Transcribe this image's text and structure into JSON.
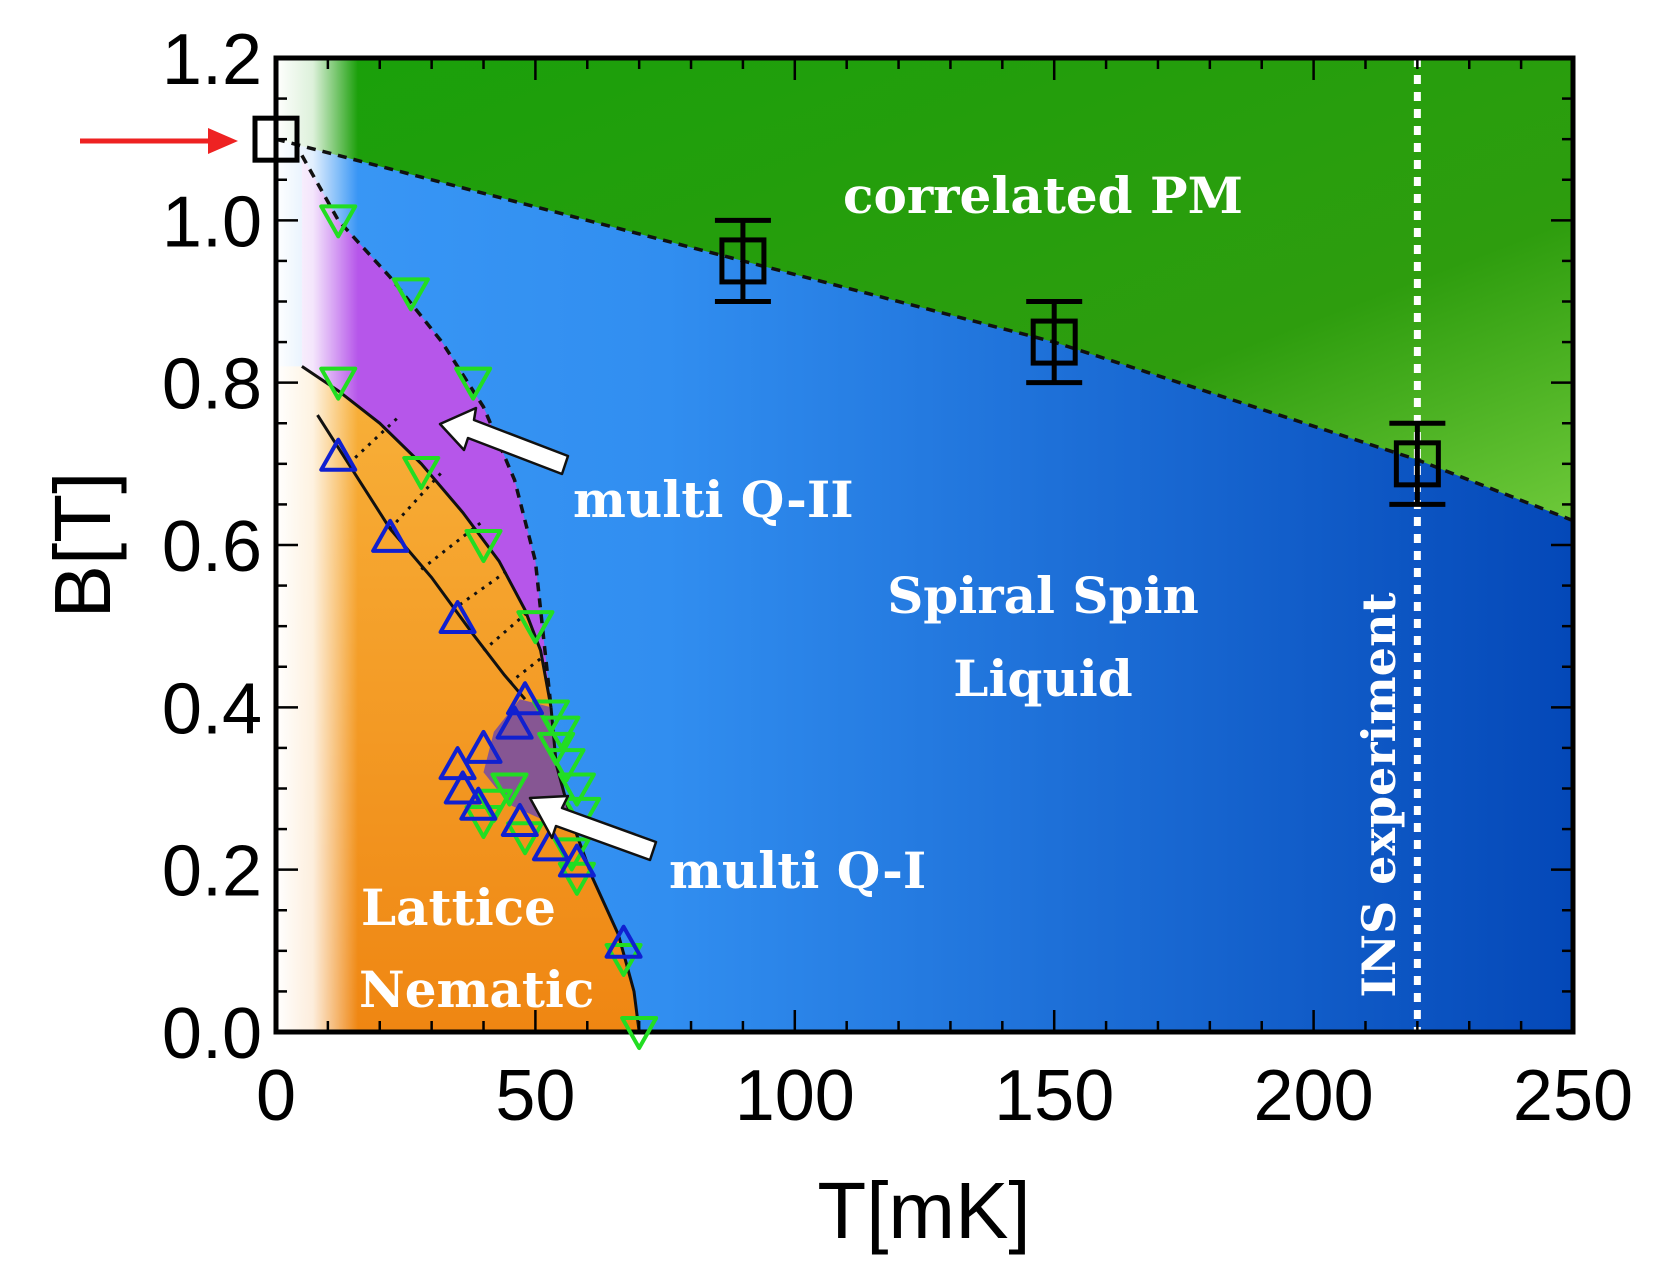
{
  "chart_data": {
    "type": "scatter",
    "title": "",
    "xlabel": "T[mK]",
    "ylabel": "B[T]",
    "xlim": [
      0,
      250
    ],
    "ylim": [
      0,
      1.2
    ],
    "xticks": [
      "0",
      "50",
      "100",
      "150",
      "200",
      "250"
    ],
    "yticks": [
      "0.0",
      "0.2",
      "0.4",
      "0.6",
      "0.8",
      "1.0",
      "1.2"
    ],
    "regions": [
      {
        "name": "correlated PM",
        "color": "#1e9a0a"
      },
      {
        "name": "Spiral Spin Liquid",
        "color": "#2b82e8"
      },
      {
        "name": "multi Q-II",
        "color": "#b656ea"
      },
      {
        "name": "multi Q-I",
        "color": "#7a4fa0"
      },
      {
        "name": "Lattice Nematic",
        "color": "#f29a1c"
      }
    ],
    "labels": {
      "correlated_pm": "correlated PM",
      "spiral_1": "Spiral Spin",
      "spiral_2": "Liquid",
      "multi_q2": "multi Q-II",
      "multi_q1": "multi Q-I",
      "lattice": "Lattice",
      "nematic": "Nematic",
      "ins": "INS experiment"
    },
    "series": [
      {
        "name": "crossover (black squares)",
        "marker": "square",
        "color": "#000000",
        "points": [
          [
            0,
            1.1,
            0
          ],
          [
            90,
            0.95,
            0.05
          ],
          [
            150,
            0.85,
            0.05
          ],
          [
            220,
            0.7,
            0.05
          ]
        ]
      },
      {
        "name": "green down-triangles",
        "marker": "triangle-down",
        "color": "#22dd22",
        "points": [
          [
            12,
            1.0
          ],
          [
            26,
            0.91
          ],
          [
            12,
            0.8
          ],
          [
            38,
            0.8
          ],
          [
            28,
            0.69
          ],
          [
            40,
            0.6
          ],
          [
            50,
            0.5
          ],
          [
            53,
            0.39
          ],
          [
            55,
            0.37
          ],
          [
            54,
            0.35
          ],
          [
            56,
            0.33
          ],
          [
            58,
            0.3
          ],
          [
            59,
            0.27
          ],
          [
            45,
            0.3
          ],
          [
            42,
            0.28
          ],
          [
            40,
            0.26
          ],
          [
            48,
            0.24
          ],
          [
            57,
            0.22
          ],
          [
            58,
            0.19
          ],
          [
            67,
            0.09
          ],
          [
            70,
            0.0
          ]
        ]
      },
      {
        "name": "blue up-triangles",
        "marker": "triangle-up",
        "color": "#1020d0",
        "points": [
          [
            12,
            0.71
          ],
          [
            22,
            0.61
          ],
          [
            35,
            0.51
          ],
          [
            48,
            0.41
          ],
          [
            46,
            0.38
          ],
          [
            40,
            0.35
          ],
          [
            35,
            0.33
          ],
          [
            36,
            0.3
          ],
          [
            39,
            0.28
          ],
          [
            47,
            0.26
          ],
          [
            53,
            0.23
          ],
          [
            58,
            0.21
          ],
          [
            67,
            0.11
          ]
        ]
      }
    ],
    "ins_experiment_T": 220
  }
}
